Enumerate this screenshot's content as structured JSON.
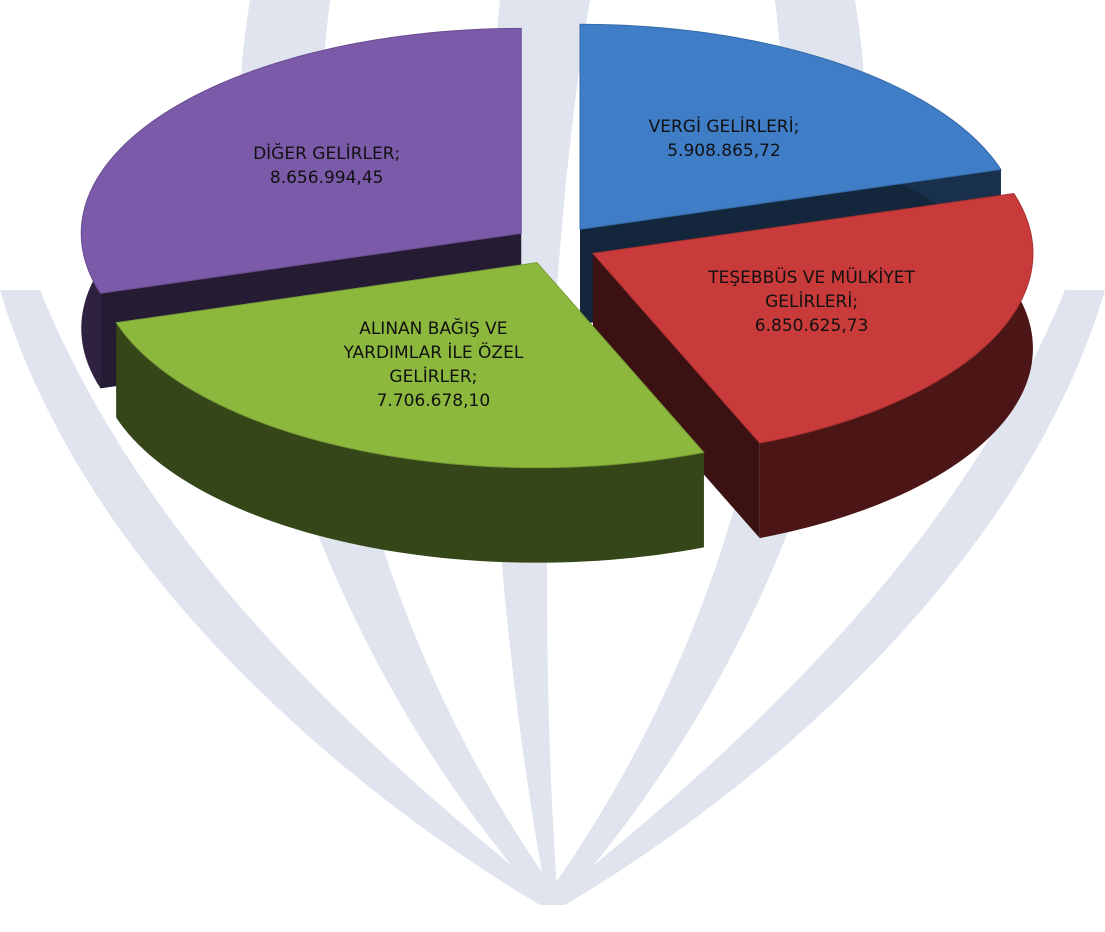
{
  "chart_data": {
    "type": "pie3d",
    "categories": [
      "VERGİ GELİRLERİ;",
      "TEŞEBBÜS VE MÜLKİYET GELİRLERİ;",
      "ALINAN BAĞIŞ VE YARDIMLAR İLE ÖZEL GELİRLER;",
      "DİĞER GELİRLER;"
    ],
    "values": [
      5908865.72,
      6850625.73,
      7706678.1,
      8656994.45
    ],
    "value_labels": [
      "5.908.865,72",
      "6.850.625,73",
      "7.706.678,10",
      "8.656.994,45"
    ],
    "colors": [
      "#3f7ec6",
      "#c93a3a",
      "#8cb83e",
      "#7b5aa9"
    ]
  }
}
